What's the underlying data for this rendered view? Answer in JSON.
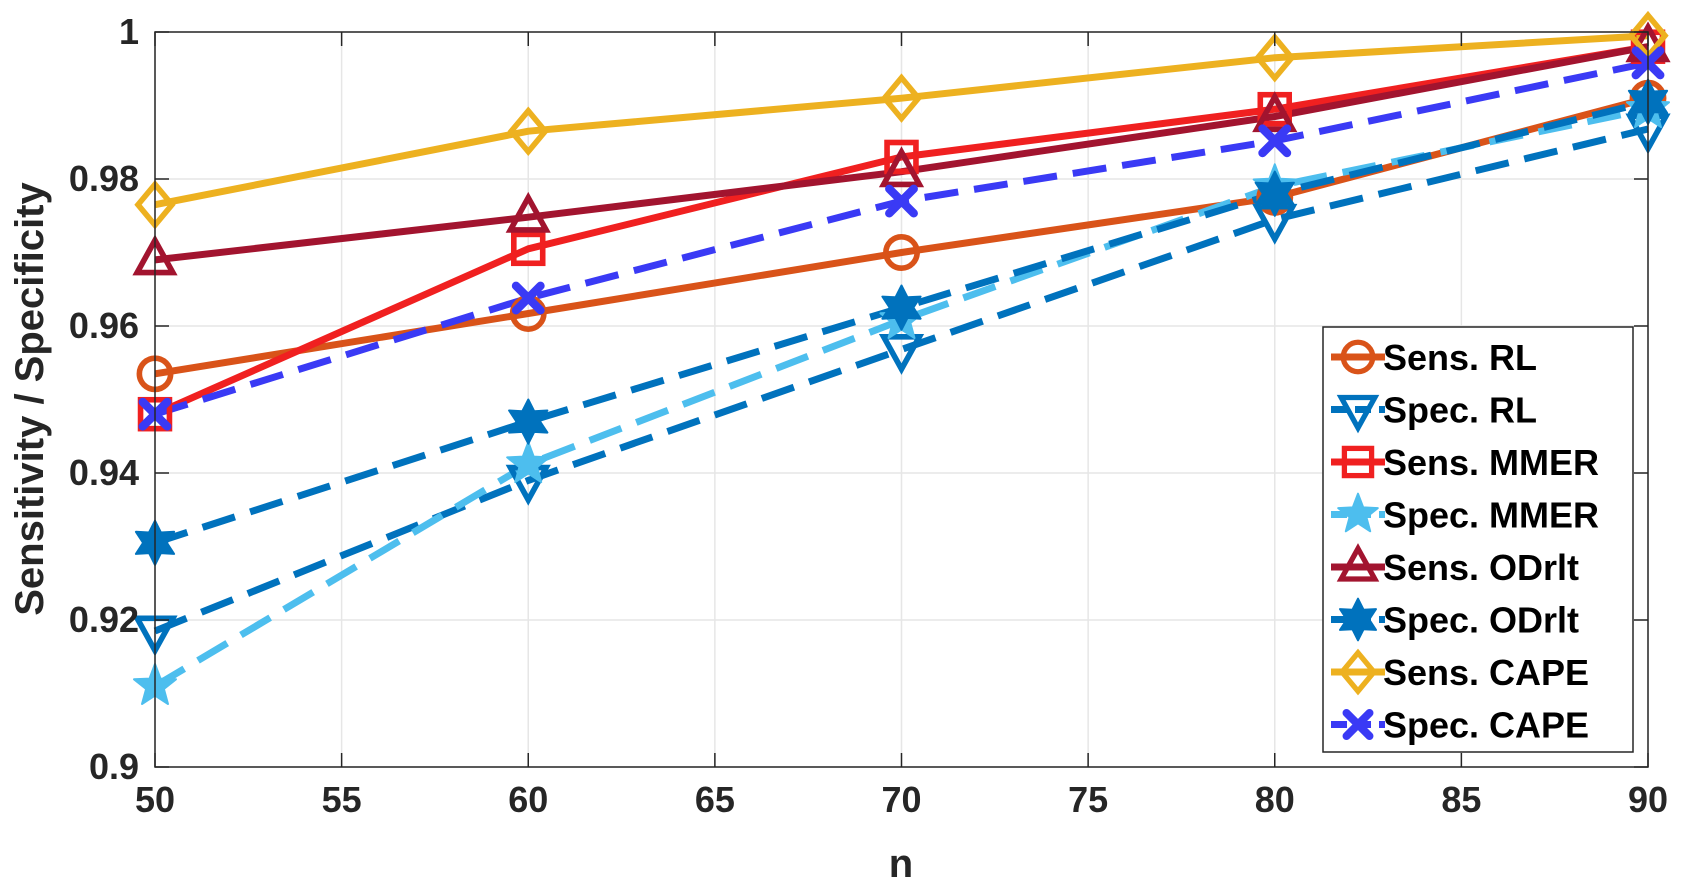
{
  "chart_data": {
    "type": "line",
    "title": "",
    "xlabel": "n",
    "ylabel": "Sensitivity / Specificity",
    "x": [
      50,
      60,
      70,
      80,
      90
    ],
    "xlim": [
      50,
      90
    ],
    "ylim": [
      0.9,
      1.0
    ],
    "xticks": [
      50,
      55,
      60,
      65,
      70,
      75,
      80,
      85,
      90
    ],
    "yticks": [
      0.9,
      0.92,
      0.94,
      0.96,
      0.98,
      1
    ],
    "xtick_labels": [
      "50",
      "55",
      "60",
      "65",
      "70",
      "75",
      "80",
      "85",
      "90"
    ],
    "ytick_labels": [
      "0.9",
      "0.92",
      "0.94",
      "0.96",
      "0.98",
      "1"
    ],
    "grid": true,
    "legend_position": "bottom-right",
    "series": [
      {
        "name": "Sens. RL",
        "values": [
          0.9535,
          0.9617,
          0.97,
          0.9775,
          0.991
        ],
        "color": "#D95319",
        "dash": "solid",
        "marker": "circle"
      },
      {
        "name": "Spec. RL",
        "values": [
          0.9185,
          0.939,
          0.9568,
          0.9745,
          0.9868
        ],
        "color": "#0072BD",
        "dash": "dashed",
        "marker": "triangle-down"
      },
      {
        "name": "Sens. MMER",
        "values": [
          0.948,
          0.9705,
          0.983,
          0.9895,
          0.998
        ],
        "color": "#F02020",
        "dash": "solid",
        "marker": "square"
      },
      {
        "name": "Spec. MMER",
        "values": [
          0.911,
          0.9412,
          0.9608,
          0.979,
          0.9895
        ],
        "color": "#4DBEEE",
        "dash": "dashed",
        "marker": "star5"
      },
      {
        "name": "Sens. ODrlt",
        "values": [
          0.969,
          0.9748,
          0.981,
          0.9885,
          0.998
        ],
        "color": "#A2142F",
        "dash": "solid",
        "marker": "triangle-up"
      },
      {
        "name": "Spec. ODrlt",
        "values": [
          0.9305,
          0.947,
          0.9625,
          0.978,
          0.9905
        ],
        "color": "#0072BD",
        "dash": "dashed",
        "marker": "star6"
      },
      {
        "name": "Sens. CAPE",
        "values": [
          0.9765,
          0.9865,
          0.991,
          0.9965,
          0.9995
        ],
        "color": "#EDB120",
        "dash": "solid",
        "marker": "diamond"
      },
      {
        "name": "Spec. CAPE",
        "values": [
          0.948,
          0.9638,
          0.977,
          0.9852,
          0.9958
        ],
        "color": "#3A3AF5",
        "dash": "dashed",
        "marker": "x"
      }
    ]
  }
}
